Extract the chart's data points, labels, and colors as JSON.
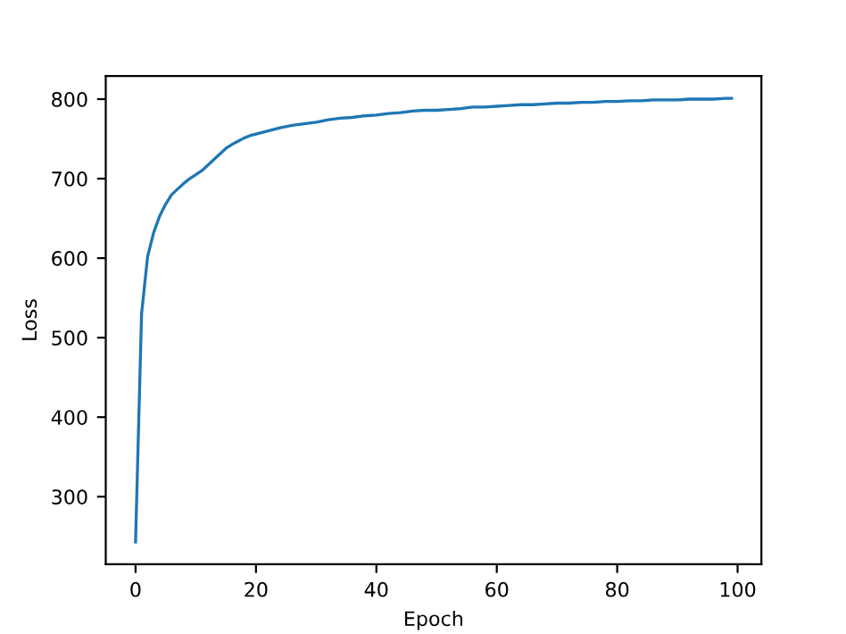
{
  "chart_data": {
    "type": "line",
    "xlabel": "Epoch",
    "ylabel": "Loss",
    "x": [
      0,
      1,
      2,
      3,
      4,
      5,
      6,
      7,
      8,
      9,
      10,
      11,
      12,
      13,
      14,
      15,
      16,
      17,
      18,
      19,
      20,
      22,
      24,
      26,
      28,
      30,
      32,
      34,
      36,
      38,
      40,
      42,
      44,
      46,
      48,
      50,
      52,
      54,
      56,
      58,
      60,
      62,
      64,
      66,
      68,
      70,
      72,
      74,
      76,
      78,
      80,
      82,
      84,
      86,
      88,
      90,
      92,
      94,
      96,
      98,
      99
    ],
    "series": [
      {
        "color": "#1f77b4",
        "values": [
          243,
          530,
          602,
          632,
          653,
          668,
          680,
          687,
          694,
          700,
          705,
          710,
          717,
          724,
          731,
          738,
          743,
          747,
          751,
          754,
          756,
          760,
          764,
          767,
          769,
          771,
          774,
          776,
          777,
          779,
          780,
          782,
          783,
          785,
          786,
          786,
          787,
          788,
          790,
          790,
          791,
          792,
          793,
          793,
          794,
          795,
          795,
          796,
          796,
          797,
          797,
          798,
          798,
          799,
          799,
          799,
          800,
          800,
          800,
          801,
          801
        ]
      }
    ],
    "xlim": [
      -4.95,
      103.95
    ],
    "ylim": [
      215,
      829
    ],
    "xticks": [
      0,
      20,
      40,
      60,
      80,
      100
    ],
    "yticks": [
      300,
      400,
      500,
      600,
      700,
      800
    ],
    "grid": false,
    "legend": false
  }
}
